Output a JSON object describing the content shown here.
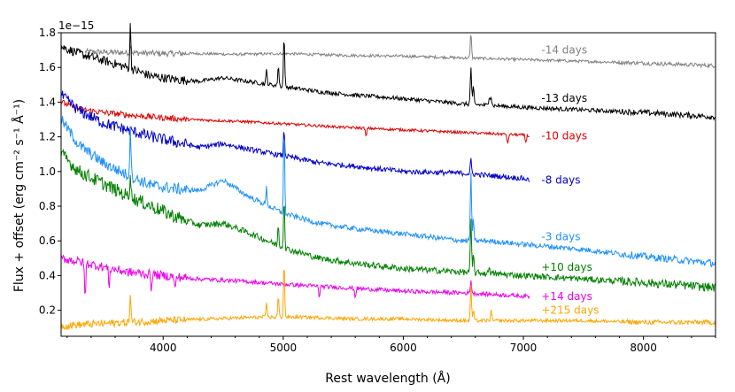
{
  "chart_data": {
    "type": "line",
    "title": "",
    "xlabel": "Rest wavelength (Å)",
    "ylabel": "Flux + offset (erg cm⁻² s⁻¹ Å⁻¹)",
    "y_scale_note": "1e−15",
    "xlim": [
      3150,
      8600
    ],
    "ylim": [
      0.05,
      1.8
    ],
    "x_ticks": [
      4000,
      5000,
      6000,
      7000,
      8000
    ],
    "x_tick_labels": [
      "4000",
      "5000",
      "6000",
      "7000",
      "8000"
    ],
    "y_ticks": [
      0.2,
      0.4,
      0.6,
      0.8,
      1.0,
      1.2,
      1.4,
      1.6,
      1.8
    ],
    "y_tick_labels": [
      "0.2",
      "0.4",
      "0.6",
      "0.8",
      "1.0",
      "1.2",
      "1.4",
      "1.6",
      "1.8"
    ],
    "series": [
      {
        "name": "-14 days",
        "label": "-14 days",
        "color": "#808080",
        "x": [
          3350,
          3700,
          4000,
          4300,
          4600,
          5000,
          5500,
          6000,
          6500,
          7000,
          7500,
          8000,
          8600
        ],
        "values": [
          1.69,
          1.685,
          1.68,
          1.68,
          1.675,
          1.68,
          1.67,
          1.665,
          1.655,
          1.645,
          1.635,
          1.625,
          1.61
        ],
        "noise": 0.008,
        "lines": [
          [
            3730,
            0.06
          ],
          [
            6563,
            0.15
          ]
        ]
      },
      {
        "name": "-13 days",
        "label": "-13 days",
        "color": "#000000",
        "x": [
          3150,
          3300,
          3500,
          3700,
          3900,
          4100,
          4300,
          4500,
          4700,
          5000,
          5300,
          5600,
          6000,
          6500,
          7000,
          7500,
          8000,
          8600
        ],
        "values": [
          1.72,
          1.68,
          1.64,
          1.6,
          1.55,
          1.53,
          1.52,
          1.54,
          1.52,
          1.49,
          1.46,
          1.44,
          1.42,
          1.39,
          1.37,
          1.355,
          1.34,
          1.315
        ],
        "noise": 0.012,
        "lines": [
          [
            3727,
            0.25
          ],
          [
            4861,
            0.08
          ],
          [
            4959,
            0.12
          ],
          [
            5007,
            0.3
          ],
          [
            6563,
            0.22
          ],
          [
            6584,
            0.1
          ],
          [
            6717,
            0.06
          ],
          [
            6731,
            0.05
          ]
        ]
      },
      {
        "name": "-10 days",
        "label": "-10 days",
        "color": "#e00000",
        "x": [
          3150,
          3300,
          3500,
          3800,
          4200,
          4600,
          5000,
          5500,
          6000,
          6500,
          7000,
          7050
        ],
        "values": [
          1.4,
          1.36,
          1.34,
          1.32,
          1.3,
          1.29,
          1.275,
          1.255,
          1.24,
          1.225,
          1.21,
          1.205
        ],
        "noise": 0.008,
        "lines": [
          [
            5690,
            -0.05
          ],
          [
            6870,
            -0.06
          ],
          [
            7020,
            -0.04
          ]
        ]
      },
      {
        "name": "-8 days",
        "label": "-8 days",
        "color": "#0000cc",
        "x": [
          3150,
          3300,
          3500,
          3700,
          3900,
          4100,
          4300,
          4500,
          4700,
          5000,
          5300,
          5600,
          6000,
          6500,
          7000,
          7050
        ],
        "values": [
          1.44,
          1.35,
          1.28,
          1.24,
          1.2,
          1.17,
          1.14,
          1.16,
          1.13,
          1.09,
          1.05,
          1.03,
          1.0,
          0.99,
          0.96,
          0.95
        ],
        "noise": 0.015,
        "lines": [
          [
            5007,
            0.15
          ],
          [
            6563,
            0.08
          ]
        ]
      },
      {
        "name": "-3 days",
        "label": "-3 days",
        "color": "#1e90ff",
        "x": [
          3150,
          3300,
          3500,
          3700,
          3900,
          4100,
          4300,
          4500,
          4700,
          5000,
          5300,
          5600,
          6000,
          6500,
          6700,
          7000,
          7500,
          8000,
          8600
        ],
        "values": [
          1.3,
          1.15,
          1.05,
          0.98,
          0.92,
          0.9,
          0.89,
          0.95,
          0.86,
          0.76,
          0.7,
          0.67,
          0.64,
          0.6,
          0.6,
          0.58,
          0.55,
          0.51,
          0.47
        ],
        "noise": 0.015,
        "lines": [
          [
            3727,
            0.3
          ],
          [
            4861,
            0.1
          ],
          [
            5007,
            0.5
          ],
          [
            6563,
            0.4
          ],
          [
            6584,
            0.12
          ]
        ]
      },
      {
        "name": "+10 days",
        "label": "+10 days",
        "color": "#008000",
        "x": [
          3150,
          3300,
          3500,
          3700,
          3900,
          4100,
          4300,
          4500,
          4700,
          5000,
          5300,
          5600,
          6000,
          6500,
          7000,
          7500,
          8000,
          8600
        ],
        "values": [
          1.1,
          1.0,
          0.93,
          0.86,
          0.8,
          0.74,
          0.69,
          0.7,
          0.65,
          0.56,
          0.5,
          0.47,
          0.44,
          0.42,
          0.4,
          0.38,
          0.36,
          0.33
        ],
        "noise": 0.018,
        "lines": [
          [
            3727,
            0.15
          ],
          [
            4959,
            0.12
          ],
          [
            5007,
            0.3
          ],
          [
            6563,
            0.3
          ],
          [
            6584,
            0.1
          ],
          [
            6717,
            0.05
          ]
        ]
      },
      {
        "name": "+14 days",
        "label": "+14 days",
        "color": "#ee00ee",
        "x": [
          3150,
          3300,
          3500,
          3700,
          4000,
          4300,
          4600,
          5000,
          5500,
          6000,
          6500,
          7050
        ],
        "values": [
          0.5,
          0.48,
          0.45,
          0.42,
          0.4,
          0.38,
          0.37,
          0.35,
          0.33,
          0.31,
          0.3,
          0.28
        ],
        "noise": 0.012,
        "lines": [
          [
            3350,
            -0.2
          ],
          [
            3550,
            -0.1
          ],
          [
            3900,
            -0.08
          ],
          [
            4100,
            -0.08
          ],
          [
            5300,
            -0.06
          ],
          [
            5600,
            -0.05
          ],
          [
            6563,
            0.08
          ]
        ]
      },
      {
        "name": "+215 days",
        "label": "+215 days",
        "color": "#ffa500",
        "x": [
          3150,
          3400,
          3700,
          4000,
          4400,
          4800,
          5200,
          5600,
          6000,
          6500,
          7000,
          7500,
          8000,
          8600
        ],
        "values": [
          0.11,
          0.12,
          0.13,
          0.14,
          0.15,
          0.16,
          0.16,
          0.15,
          0.15,
          0.14,
          0.14,
          0.14,
          0.13,
          0.13
        ],
        "noise": 0.01,
        "lines": [
          [
            3727,
            0.16
          ],
          [
            4861,
            0.08
          ],
          [
            4959,
            0.12
          ],
          [
            5007,
            0.32
          ],
          [
            6563,
            0.2
          ],
          [
            6584,
            0.06
          ],
          [
            6731,
            0.06
          ]
        ]
      }
    ]
  }
}
